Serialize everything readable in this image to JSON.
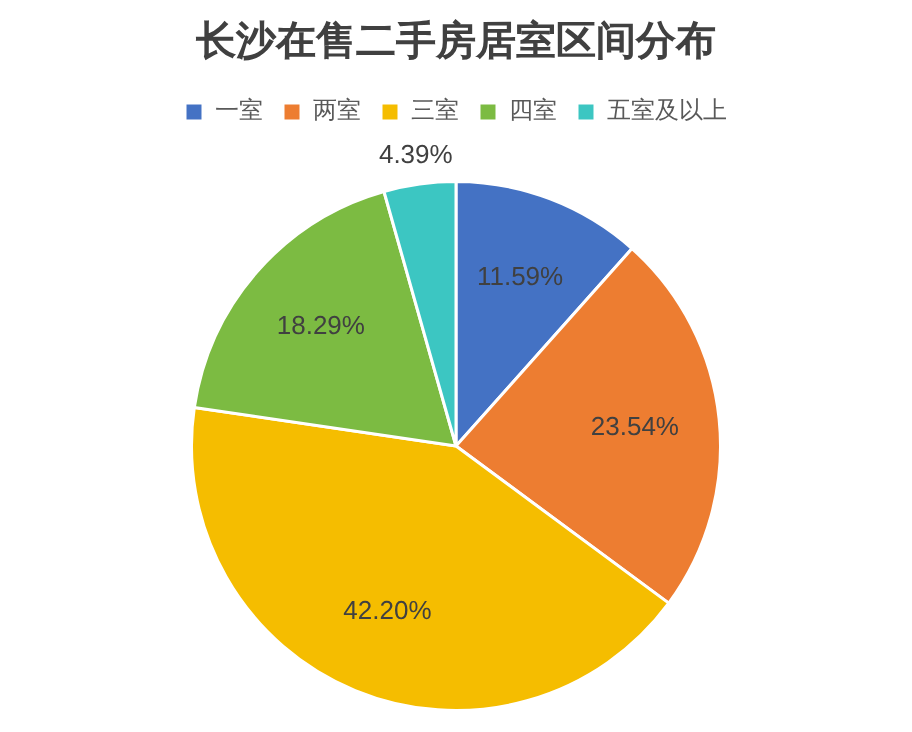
{
  "chart_data": {
    "type": "pie",
    "title": "长沙在售二手房居室区间分布",
    "categories": [
      "一室",
      "两室",
      "三室",
      "四室",
      "五室及以上"
    ],
    "values": [
      11.59,
      23.54,
      42.2,
      18.29,
      4.39
    ],
    "value_labels": [
      "11.59%",
      "23.54%",
      "42.20%",
      "18.29%",
      "4.39%"
    ],
    "colors": [
      "#4472c4",
      "#ed7d31",
      "#f5bd00",
      "#7cbb42",
      "#3cc6c2"
    ],
    "legend": "top"
  }
}
